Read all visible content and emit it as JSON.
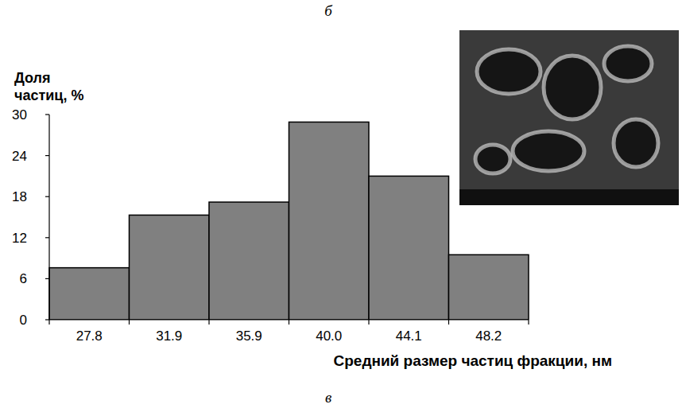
{
  "chart_data": {
    "type": "bar",
    "y_label": "Доля частиц, %",
    "x_label": "Средний размер частиц фракции, нм",
    "annotations": [
      "б",
      "в"
    ],
    "categories": [
      "27.8",
      "31.9",
      "35.9",
      "40.0",
      "44.1",
      "48.2"
    ],
    "values": [
      7.6,
      15.3,
      17.2,
      28.9,
      21.0,
      9.5
    ],
    "color": "#808080",
    "ylim": [
      0,
      30
    ],
    "yticks": [
      0,
      6,
      12,
      18,
      24,
      30
    ],
    "grid": false
  }
}
